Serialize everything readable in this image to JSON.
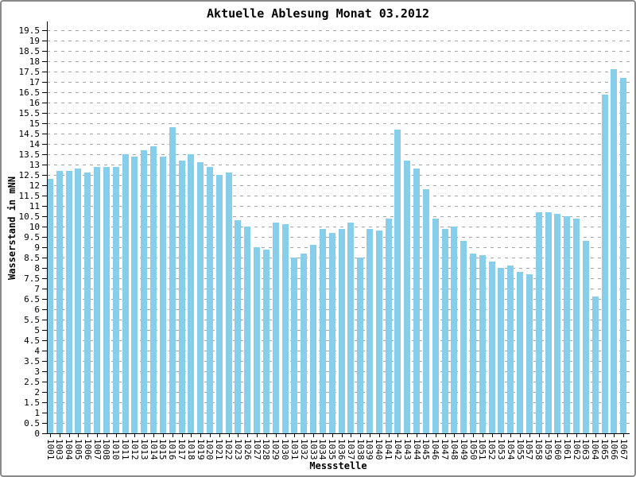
{
  "chart_data": {
    "type": "bar",
    "title": "Aktuelle Ablesung Monat 03.2012",
    "xlabel": "Messstelle",
    "ylabel": "Wasserstand in mNN",
    "ylim": [
      0,
      19.5
    ],
    "ytick_step": 0.5,
    "grid": true,
    "legend": "none",
    "bar_color": "#87CEEB",
    "gridline_color": "#a6a6a6",
    "categories": [
      "1001",
      "1003",
      "1004",
      "1005",
      "1006",
      "1007",
      "1008",
      "1010",
      "1011",
      "1012",
      "1013",
      "1014",
      "1015",
      "1016",
      "1017",
      "1018",
      "1019",
      "1020",
      "1021",
      "1022",
      "1023",
      "1026",
      "1027",
      "1028",
      "1029",
      "1030",
      "1031",
      "1032",
      "1033",
      "1034",
      "1035",
      "1036",
      "1037",
      "1038",
      "1039",
      "1040",
      "1041",
      "1042",
      "1043",
      "1044",
      "1045",
      "1046",
      "1047",
      "1048",
      "1049",
      "1050",
      "1051",
      "1052",
      "1053",
      "1054",
      "1055",
      "1057",
      "1058",
      "1059",
      "1060",
      "1061",
      "1062",
      "1063",
      "1064",
      "1065",
      "1066",
      "1067"
    ],
    "values": [
      12.3,
      12.7,
      12.7,
      12.8,
      12.6,
      12.9,
      12.9,
      12.9,
      13.5,
      13.4,
      13.7,
      13.9,
      13.4,
      14.8,
      13.2,
      13.5,
      13.1,
      12.9,
      12.5,
      12.6,
      10.3,
      10.0,
      9.0,
      8.9,
      10.2,
      10.1,
      8.5,
      8.7,
      9.1,
      9.9,
      9.7,
      9.9,
      10.2,
      8.5,
      9.9,
      9.8,
      10.4,
      14.7,
      13.2,
      12.8,
      11.8,
      10.4,
      9.9,
      10.0,
      9.3,
      8.7,
      8.6,
      8.3,
      8.0,
      8.1,
      7.8,
      7.7,
      10.7,
      10.7,
      10.6,
      10.5,
      10.4,
      9.3,
      6.6,
      16.4,
      17.6,
      17.2
    ]
  }
}
